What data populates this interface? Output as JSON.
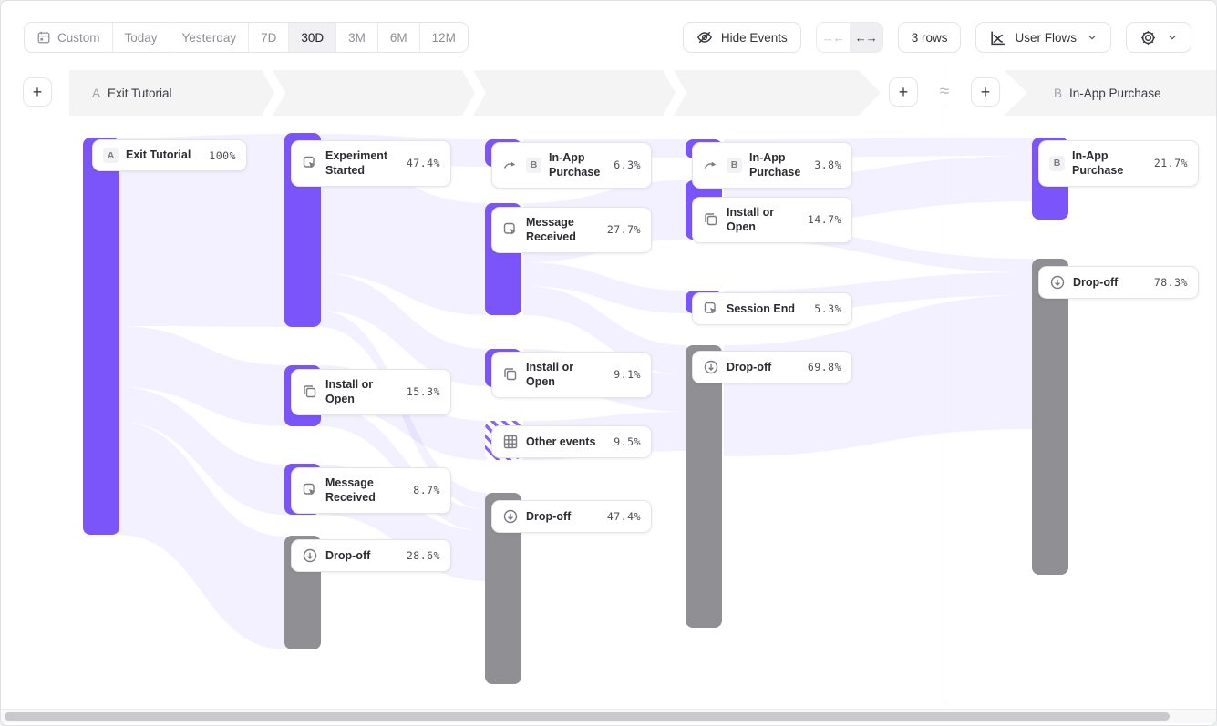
{
  "toolbar": {
    "date_ranges": [
      "Custom",
      "Today",
      "Yesterday",
      "7D",
      "30D",
      "3M",
      "6M",
      "12M"
    ],
    "selected_range": "30D",
    "hide_events_label": "Hide Events",
    "rows_label": "3 rows",
    "view_type_label": "User Flows"
  },
  "header": {
    "approx_symbol": "≈",
    "add_label": "+"
  },
  "chart_data": {
    "type": "sankey",
    "title": "User Flows",
    "colors": {
      "flow": "#7B55FA",
      "dropoff": "#909094",
      "ribbon": "#EFEDFB"
    },
    "flows": [
      {
        "id": "A",
        "title": "Exit Tutorial",
        "columns": [
          {
            "nodes": [
              {
                "label": "Exit Tutorial",
                "pct": "100%",
                "badge": "A"
              }
            ]
          },
          {
            "nodes": [
              {
                "label": "Experiment Started",
                "pct": "47.4%",
                "icon": "event"
              },
              {
                "label": "Install or Open",
                "pct": "15.3%",
                "icon": "copy"
              },
              {
                "label": "Message Received",
                "pct": "8.7%",
                "icon": "event"
              },
              {
                "label": "Drop-off",
                "pct": "28.6%",
                "icon": "drop-off"
              }
            ]
          },
          {
            "nodes": [
              {
                "label": "In-App Purchase",
                "pct": "6.3%",
                "badge": "B",
                "icon": "cross-flow"
              },
              {
                "label": "Message Received",
                "pct": "27.7%",
                "icon": "event"
              },
              {
                "label": "Install or Open",
                "pct": "9.1%",
                "icon": "copy"
              },
              {
                "label": "Other events",
                "pct": "9.5%",
                "icon": "grid"
              },
              {
                "label": "Drop-off",
                "pct": "47.4%",
                "icon": "drop-off"
              }
            ]
          },
          {
            "nodes": [
              {
                "label": "In-App Purchase",
                "pct": "3.8%",
                "badge": "B",
                "icon": "cross-flow"
              },
              {
                "label": "Install or Open",
                "pct": "14.7%",
                "icon": "copy"
              },
              {
                "label": "Session End",
                "pct": "5.3%",
                "icon": "event"
              },
              {
                "label": "Drop-off",
                "pct": "69.8%",
                "icon": "drop-off"
              }
            ]
          }
        ]
      },
      {
        "id": "B",
        "title": "In-App Purchase",
        "columns": [
          {
            "nodes": [
              {
                "label": "In-App Purchase",
                "pct": "21.7%",
                "badge": "B"
              },
              {
                "label": "Drop-off",
                "pct": "78.3%",
                "icon": "drop-off"
              }
            ]
          }
        ]
      }
    ]
  }
}
